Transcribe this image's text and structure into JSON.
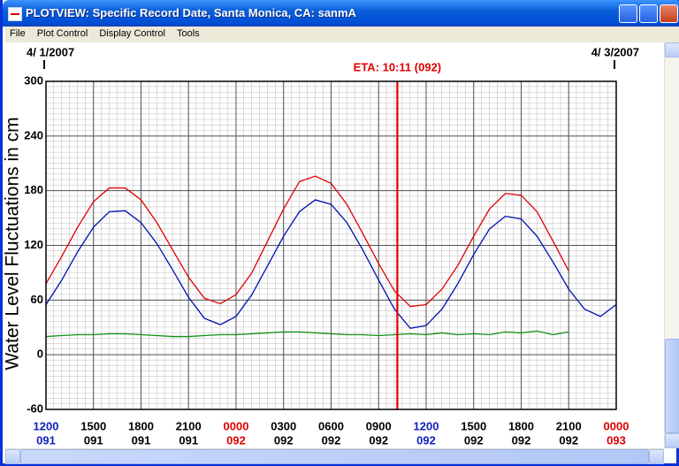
{
  "window": {
    "title": "PLOTVIEW: Specific Record Date, Santa Monica, CA: sanmA",
    "menu": [
      "File",
      "Plot Control",
      "Display Control",
      "Tools"
    ]
  },
  "chart_data": {
    "type": "line",
    "ylabel": "Water Level Fluctuations in cm",
    "ylim": [
      -60,
      300
    ],
    "yticks": [
      -60,
      0,
      60,
      120,
      180,
      240,
      300
    ],
    "xlim": [
      0,
      36
    ],
    "xticks": [
      {
        "value": 0,
        "label": "1200"
      },
      {
        "value": 3,
        "label": "1500"
      },
      {
        "value": 6,
        "label": "1800"
      },
      {
        "value": 9,
        "label": "2100"
      },
      {
        "value": 12,
        "label": "0000"
      },
      {
        "value": 15,
        "label": "0300"
      },
      {
        "value": 18,
        "label": "0600"
      },
      {
        "value": 21,
        "label": "0900"
      },
      {
        "value": 24,
        "label": "1200"
      },
      {
        "value": 27,
        "label": "1500"
      },
      {
        "value": 30,
        "label": "1800"
      },
      {
        "value": 33,
        "label": "2100"
      },
      {
        "value": 36,
        "label": "0000"
      }
    ],
    "xtick_days": [
      "091",
      "091",
      "091",
      "091",
      "092",
      "092",
      "092",
      "092",
      "092",
      "092",
      "092",
      "092",
      "093"
    ],
    "xtick_colors": [
      "#1020c0",
      "#000000",
      "#000000",
      "#000000",
      "#e00000",
      "#000000",
      "#000000",
      "#000000",
      "#1020c0",
      "#000000",
      "#000000",
      "#000000",
      "#e00000"
    ],
    "top_dates": [
      {
        "value": 0,
        "label": "4/ 1/2007"
      },
      {
        "value": 36,
        "label": "4/ 3/2007"
      }
    ],
    "marker": {
      "value": 22.18,
      "label": "ETA: 10:11 (092)",
      "color": "#e00000"
    },
    "grid": true,
    "x": [
      0,
      1,
      2,
      3,
      4,
      5,
      6,
      7,
      8,
      9,
      10,
      11,
      12,
      13,
      14,
      15,
      16,
      17,
      18,
      19,
      20,
      21,
      22,
      23,
      24,
      25,
      26,
      27,
      28,
      29,
      30,
      31,
      32,
      33,
      34,
      35,
      36
    ],
    "series": [
      {
        "color": "#e00000",
        "values": [
          78,
          108,
          140,
          168,
          183,
          183,
          170,
          145,
          115,
          85,
          62,
          56,
          66,
          90,
          125,
          160,
          190,
          196,
          188,
          165,
          133,
          100,
          70,
          53,
          55,
          72,
          98,
          130,
          160,
          177,
          175,
          157,
          125,
          92,
          null,
          null,
          null
        ]
      },
      {
        "color": "#0010b0",
        "values": [
          55,
          82,
          113,
          140,
          157,
          158,
          145,
          122,
          93,
          63,
          40,
          33,
          42,
          66,
          98,
          130,
          157,
          170,
          165,
          145,
          115,
          82,
          50,
          29,
          32,
          50,
          78,
          110,
          138,
          152,
          149,
          130,
          102,
          72,
          50,
          42,
          55
        ]
      },
      {
        "color": "#109010",
        "values": [
          20,
          21,
          22,
          22,
          23,
          23,
          22,
          21,
          20,
          20,
          21,
          22,
          22,
          23,
          24,
          25,
          25,
          24,
          23,
          22,
          22,
          21,
          22,
          23,
          22,
          24,
          22,
          23,
          22,
          25,
          24,
          26,
          22,
          25,
          null,
          null,
          null
        ]
      }
    ]
  }
}
